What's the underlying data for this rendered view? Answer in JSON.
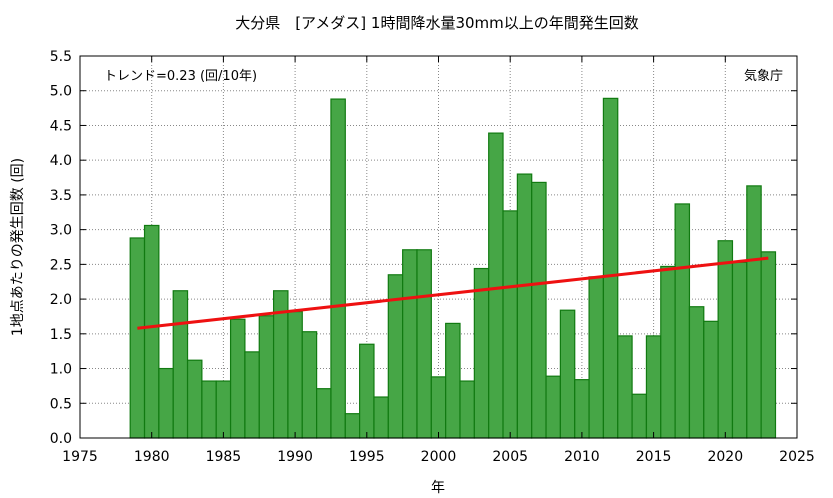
{
  "chart_data": {
    "type": "bar",
    "title": "大分県　[アメダス] 1時間降水量30mm以上の年間発生回数",
    "annotation_left": "トレンド=0.23 (回/10年)",
    "annotation_right": "気象庁",
    "xlabel": "年",
    "ylabel": "1地点あたりの発生回数 (回)",
    "xlim": [
      1975,
      2025
    ],
    "ylim": [
      0.0,
      5.5
    ],
    "x_ticks": [
      "1975",
      "1980",
      "1985",
      "1990",
      "1995",
      "2000",
      "2005",
      "2010",
      "2015",
      "2020",
      "2025"
    ],
    "y_ticks": [
      "0.0",
      "0.5",
      "1.0",
      "1.5",
      "2.0",
      "2.5",
      "3.0",
      "3.5",
      "4.0",
      "4.5",
      "5.0",
      "5.5"
    ],
    "grid": true,
    "bar_color": "#46a646",
    "bar_edge_color": "#117a11",
    "trend_color": "#ee1111",
    "x": [
      1979,
      1980,
      1981,
      1982,
      1983,
      1984,
      1985,
      1986,
      1987,
      1988,
      1989,
      1990,
      1991,
      1992,
      1993,
      1994,
      1995,
      1996,
      1997,
      1998,
      1999,
      2000,
      2001,
      2002,
      2003,
      2004,
      2005,
      2006,
      2007,
      2008,
      2009,
      2010,
      2011,
      2012,
      2013,
      2014,
      2015,
      2016,
      2017,
      2018,
      2019,
      2020,
      2021,
      2022,
      2023
    ],
    "values": [
      2.88,
      3.06,
      1.0,
      2.12,
      1.12,
      0.82,
      0.82,
      1.71,
      1.24,
      1.76,
      2.12,
      1.82,
      1.53,
      0.71,
      4.88,
      0.35,
      1.35,
      0.59,
      2.35,
      2.71,
      2.71,
      0.88,
      1.65,
      0.82,
      2.44,
      4.39,
      3.27,
      3.8,
      3.68,
      0.89,
      1.84,
      0.84,
      2.32,
      4.89,
      1.47,
      0.63,
      1.47,
      2.47,
      3.37,
      1.89,
      1.68,
      2.84,
      2.53,
      3.63,
      2.68
    ],
    "trend": {
      "x": [
        1979,
        2023
      ],
      "y": [
        1.58,
        2.59
      ]
    }
  }
}
